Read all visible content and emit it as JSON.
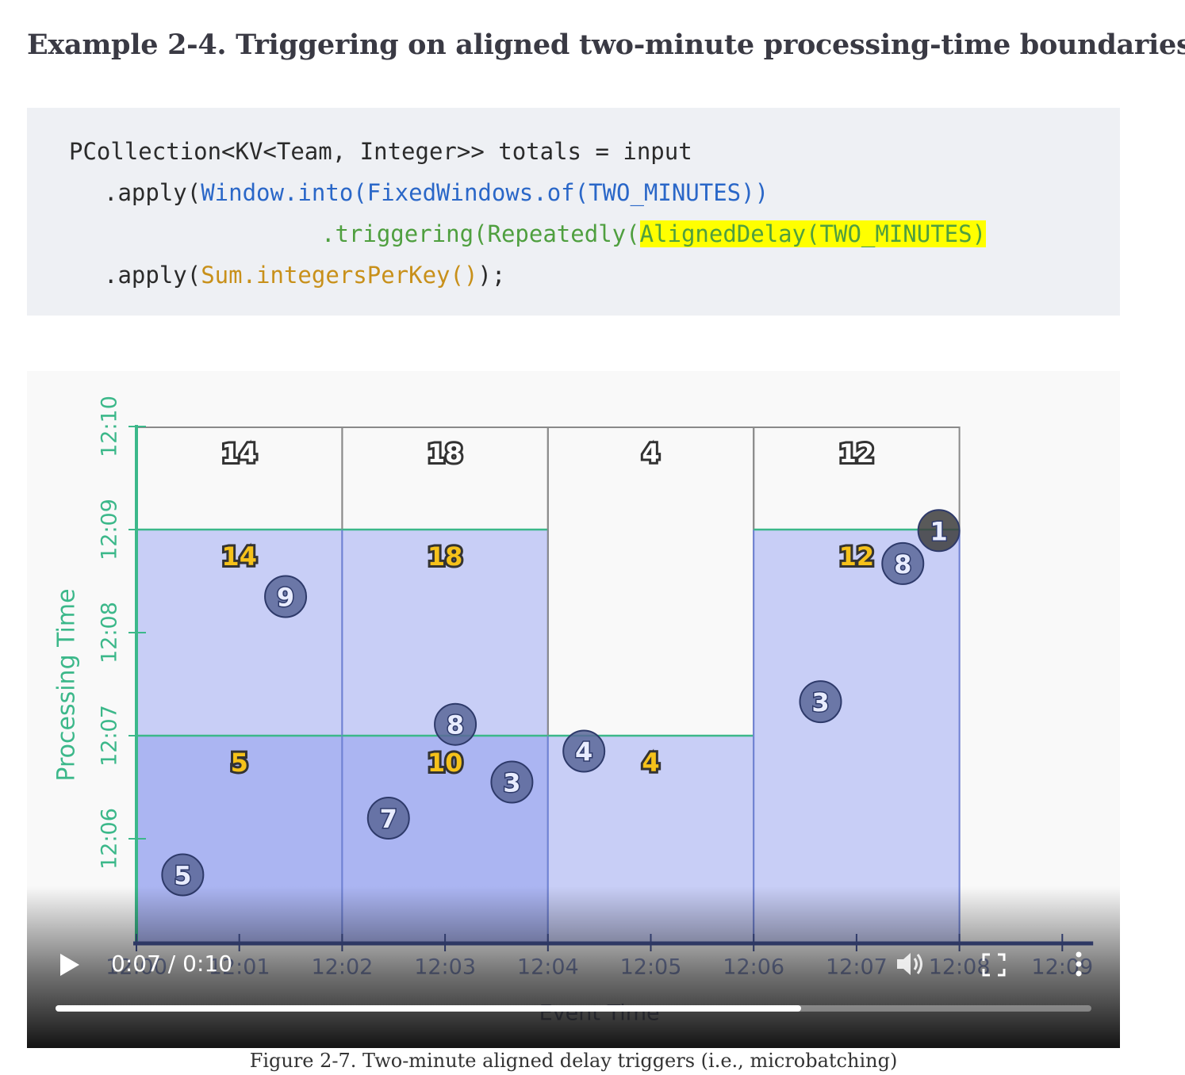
{
  "heading": "Example 2-4. Triggering on aligned two-minute processing-time boundaries",
  "code": {
    "line1": "PCollection<KV<Team, Integer>> totals = input",
    "line2_prefix": ".apply(",
    "line2_call": "Window.into(FixedWindows.of(TWO_MINUTES))",
    "line3_call": ".triggering(Repeatedly(",
    "line3_highlight": "AlignedDelay(TWO_MINUTES)",
    "line4_prefix": ".apply(",
    "line4_call": "Sum.integersPerKey()",
    "line4_suffix": ");"
  },
  "video": {
    "current_time": "0:07",
    "separator": " / ",
    "duration": "0:10",
    "progress_fraction": 0.72,
    "icons": {
      "play": "play-icon",
      "volume": "volume-icon",
      "fullscreen": "fullscreen-icon",
      "more": "more-vertical-icon"
    }
  },
  "chart_data": {
    "type": "diagram",
    "ylabel": "Processing Time",
    "xlabel": "Event Time",
    "x_ticks": [
      "12:00",
      "12:01",
      "12:02",
      "12:03",
      "12:04",
      "12:05",
      "12:06",
      "12:07",
      "12:08",
      "12:09"
    ],
    "y_ticks": [
      "12:06",
      "12:07",
      "12:08",
      "12:09",
      "12:10"
    ],
    "windows": [
      {
        "start": 0,
        "end": 2,
        "pane_tops": [
          7,
          9
        ],
        "final_value": "14",
        "pane_values": [
          "5",
          "14"
        ]
      },
      {
        "start": 2,
        "end": 4,
        "pane_tops": [
          7,
          9
        ],
        "final_value": "18",
        "pane_values": [
          "10",
          "18"
        ]
      },
      {
        "start": 4,
        "end": 6,
        "pane_tops": [
          7
        ],
        "final_value": "4",
        "pane_values": [
          "4"
        ]
      },
      {
        "start": 6,
        "end": 8,
        "pane_tops": [
          9
        ],
        "final_value": "12",
        "pane_values": [
          "12"
        ]
      }
    ],
    "points": [
      {
        "x": 0.45,
        "y": 5.65,
        "value": "5"
      },
      {
        "x": 1.45,
        "y": 8.35,
        "value": "9"
      },
      {
        "x": 2.45,
        "y": 6.2,
        "value": "7"
      },
      {
        "x": 3.1,
        "y": 7.11,
        "value": "8"
      },
      {
        "x": 3.65,
        "y": 6.55,
        "value": "3"
      },
      {
        "x": 4.35,
        "y": 6.85,
        "value": "4"
      },
      {
        "x": 6.65,
        "y": 7.33,
        "value": "3"
      },
      {
        "x": 7.45,
        "y": 8.67,
        "value": "8"
      },
      {
        "x": 7.8,
        "y": 8.99,
        "value": "1"
      }
    ],
    "colors": {
      "axis_green": "#3cb88a",
      "axis_dark": "#46569a",
      "pane_light": "#c5cbf6",
      "pane_dark": "#a7b2f2",
      "pane_border": "#6f82d6",
      "circle": "#5a6799",
      "circle_dark": "#3d3d3d",
      "number_yellow": "#f6c21a"
    }
  },
  "caption": "Figure 2-7. Two-minute aligned delay triggers (i.e., microbatching)"
}
